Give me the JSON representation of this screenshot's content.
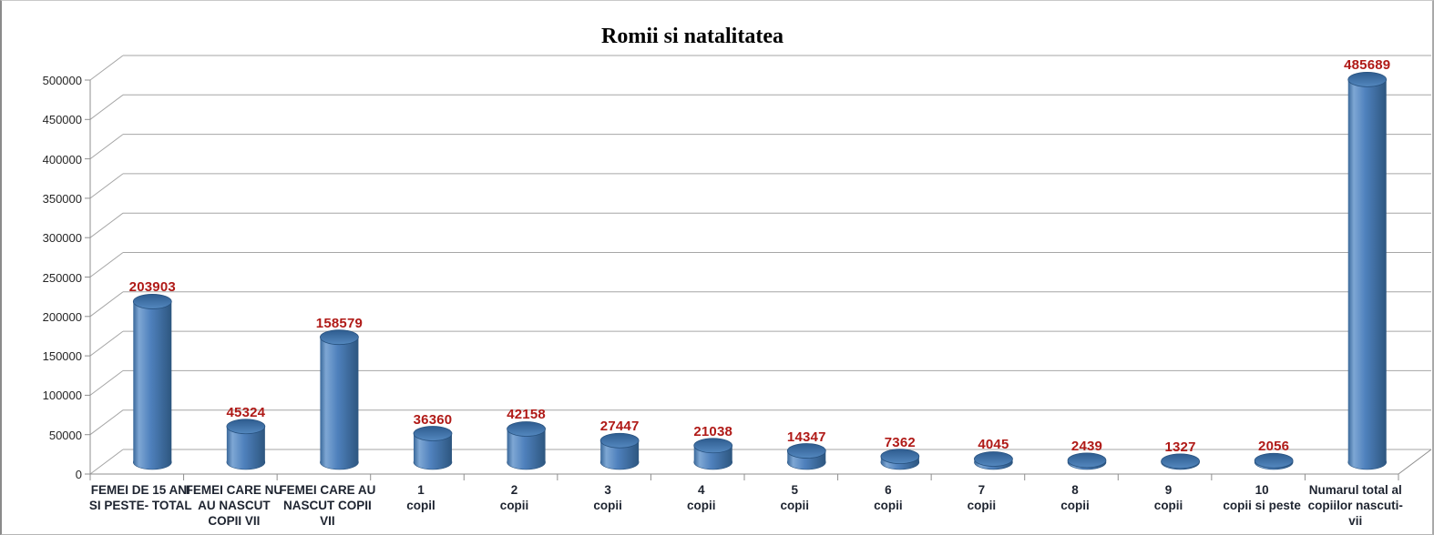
{
  "chart_data": {
    "type": "bar",
    "subtype": "3d-cylinder",
    "title": "Romii si natalitatea",
    "categories": [
      "FEMEI DE 15 ANI SI PESTE- TOTAL",
      "FEMEI CARE NU AU NASCUT COPII VII",
      "FEMEI CARE AU NASCUT COPII VII",
      "1 copil",
      "2 copii",
      "3 copii",
      "4 copii",
      "5 copii",
      "6 copii",
      "7 copii",
      "8 copii",
      "9 copii",
      "10 copii si peste",
      "Numarul total al copiilor nascuti-vii"
    ],
    "category_lines": [
      [
        "FEMEI DE 15 ANI",
        "SI PESTE- TOTAL"
      ],
      [
        "FEMEI CARE  NU",
        "AU  NASCUT",
        "COPII VII"
      ],
      [
        "FEMEI CARE AU",
        "NASCUT  COPII",
        "VII"
      ],
      [
        "1",
        "copil"
      ],
      [
        "2",
        "copii"
      ],
      [
        "3",
        "copii"
      ],
      [
        "4",
        "copii"
      ],
      [
        "5",
        "copii"
      ],
      [
        "6",
        "copii"
      ],
      [
        "7",
        "copii"
      ],
      [
        "8",
        "copii"
      ],
      [
        "9",
        "copii"
      ],
      [
        "10",
        "copii si peste"
      ],
      [
        "Numarul total al",
        "copiilor nascuti-",
        "vii"
      ]
    ],
    "values": [
      203903,
      45324,
      158579,
      36360,
      42158,
      27447,
      21038,
      14347,
      7362,
      4045,
      2439,
      1327,
      2056,
      485689
    ],
    "value_labels": [
      "203903",
      "45324",
      "158579",
      "36360",
      "42158",
      "27447",
      "21038",
      "14347",
      "7362",
      "4045",
      "2439",
      "1327",
      "2056",
      "485689"
    ],
    "ylim": [
      0,
      500000
    ],
    "ytick_step": 50000,
    "ytick_labels": [
      "0",
      "50000",
      "100000",
      "150000",
      "200000",
      "250000",
      "300000",
      "350000",
      "400000",
      "450000",
      "500000"
    ],
    "grid": true,
    "legend": null,
    "colors": {
      "bar_body": "#4F81BD",
      "bar_body_light": "#7EA7D4",
      "bar_body_dark": "#2D567F",
      "bar_top": "#3A689A",
      "bar_edge": "#27517E",
      "value_label": "#B01A17",
      "category_label": "#1E2430",
      "ytick_label": "#262626",
      "gridline": "#A6A6A6",
      "axis": "#8F8F8F",
      "title": "#000000",
      "background": "#FFFFFF"
    }
  }
}
